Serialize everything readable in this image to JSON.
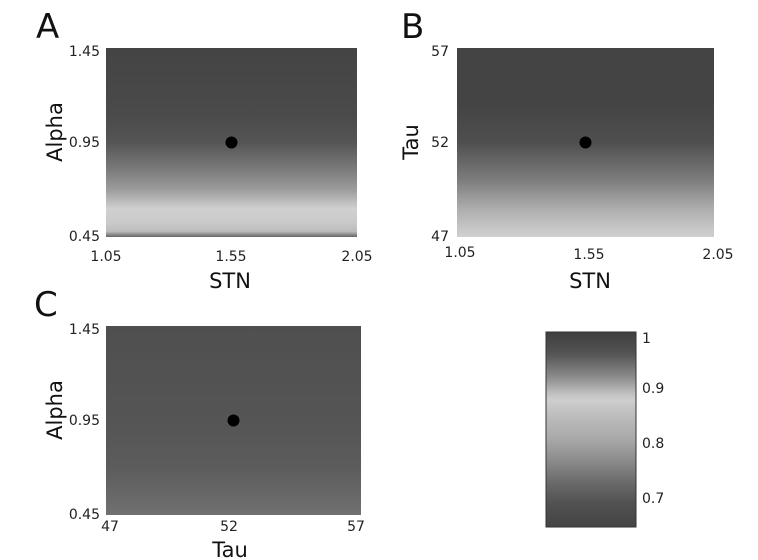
{
  "chart_data": [
    {
      "type": "heatmap",
      "panel": "A",
      "xlabel": "STN",
      "ylabel": "Alpha",
      "xlim": [
        1.05,
        2.05
      ],
      "ylim": [
        0.45,
        1.45
      ],
      "xticks": [
        "1.05",
        "1.55",
        "2.05"
      ],
      "yticks": [
        "0.45",
        "0.95",
        "1.45"
      ],
      "marker": {
        "x": 1.55,
        "y": 0.95
      },
      "profile": [
        {
          "y": 0.45,
          "v": 0.72
        },
        {
          "y": 0.48,
          "v": 0.85
        },
        {
          "y": 0.53,
          "v": 0.87
        },
        {
          "y": 0.6,
          "v": 0.88
        },
        {
          "y": 0.7,
          "v": 0.91
        },
        {
          "y": 0.8,
          "v": 0.93
        },
        {
          "y": 0.95,
          "v": 0.96
        },
        {
          "y": 1.1,
          "v": 0.98
        },
        {
          "y": 1.45,
          "v": 0.99
        }
      ]
    },
    {
      "type": "heatmap",
      "panel": "B",
      "xlabel": "STN",
      "ylabel": "Tau",
      "xlim": [
        1.05,
        2.05
      ],
      "ylim": [
        47,
        57
      ],
      "xticks": [
        "1.05",
        "1.55",
        "2.05"
      ],
      "yticks": [
        "47",
        "52",
        "57"
      ],
      "marker": {
        "x": 1.55,
        "y": 52
      },
      "profile": [
        {
          "y": 47,
          "v": 0.88
        },
        {
          "y": 47.6,
          "v": 0.86
        },
        {
          "y": 48.5,
          "v": 0.9
        },
        {
          "y": 50,
          "v": 0.93
        },
        {
          "y": 52,
          "v": 0.97
        },
        {
          "y": 54,
          "v": 0.99
        },
        {
          "y": 57,
          "v": 0.99
        }
      ]
    },
    {
      "type": "heatmap",
      "panel": "C",
      "xlabel": "Tau",
      "ylabel": "Alpha",
      "xlim": [
        47,
        57
      ],
      "ylim": [
        0.45,
        1.45
      ],
      "xticks": [
        "47",
        "52",
        "57"
      ],
      "yticks": [
        "0.45",
        "0.95",
        "1.45"
      ],
      "marker": {
        "x": 52,
        "y": 0.95
      },
      "profile": [
        {
          "y": 0.45,
          "v": 0.94
        },
        {
          "y": 0.7,
          "v": 0.955
        },
        {
          "y": 0.95,
          "v": 0.96
        },
        {
          "y": 1.2,
          "v": 0.965
        },
        {
          "y": 1.45,
          "v": 0.97
        }
      ]
    }
  ],
  "colorbar": {
    "ticks": [
      "1",
      "0.9",
      "0.8",
      "0.7"
    ],
    "tick_values": [
      1.0,
      0.9,
      0.8,
      0.7
    ],
    "range": [
      0.65,
      1.0
    ],
    "stops": [
      {
        "v": 1.0,
        "color": "#3e3e3e"
      },
      {
        "v": 0.96,
        "color": "#555555"
      },
      {
        "v": 0.92,
        "color": "#8a8a8a"
      },
      {
        "v": 0.88,
        "color": "#d0d0d0"
      },
      {
        "v": 0.85,
        "color": "#bdbdbd"
      },
      {
        "v": 0.81,
        "color": "#aaaaaa"
      },
      {
        "v": 0.77,
        "color": "#8c8c8c"
      },
      {
        "v": 0.73,
        "color": "#6a6a6a"
      },
      {
        "v": 0.69,
        "color": "#505050"
      },
      {
        "v": 0.65,
        "color": "#444444"
      }
    ]
  }
}
